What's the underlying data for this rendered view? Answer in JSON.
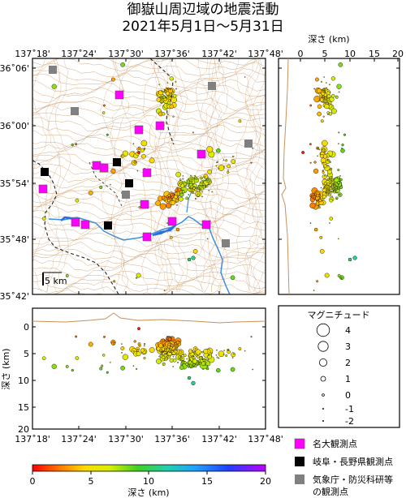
{
  "title_line1": "御嶽山周辺域の地震活動",
  "title_line2": "2021年5月1日～5月31日",
  "map": {
    "lon_ticks": [
      "137˚18'",
      "137˚24'",
      "137˚30'",
      "137˚36'",
      "137˚42'",
      "137˚48'"
    ],
    "lat_ticks": [
      "36˚06'",
      "36˚00'",
      "35˚54'",
      "35˚48'",
      "35˚42'"
    ],
    "scale_label": "5 km",
    "colors": {
      "contour": "#c8915a",
      "river": "#3a8fe0",
      "border": "#222222",
      "frame": "#000000"
    }
  },
  "depth_map": {
    "axis_title": "深さ (km)",
    "ticks": [
      "0",
      "5",
      "10",
      "15",
      "20"
    ]
  },
  "cross_section": {
    "ylabel": "深さ (km)",
    "y_ticks": [
      "0",
      "5",
      "10",
      "15",
      "20"
    ],
    "x_ticks": [
      "137˚18'",
      "137˚24'",
      "137˚30'",
      "137˚36'",
      "137˚42'",
      "137˚48'"
    ]
  },
  "magnitude_legend": {
    "title": "マグニチュード",
    "labels": [
      "4",
      "3",
      "2",
      "1",
      "0",
      "-1",
      "-2"
    ]
  },
  "colorbar": {
    "ticks": [
      "0",
      "5",
      "10",
      "15",
      "20"
    ],
    "label": "深さ (km)"
  },
  "station_legend": [
    {
      "label": "名大観測点",
      "color": "#ff00ff"
    },
    {
      "label": "岐阜・長野県観測点",
      "color": "#000000"
    },
    {
      "label": "気象庁・防災科研等",
      "color": "#808080"
    },
    {
      "label": "の観測点",
      "color": ""
    }
  ],
  "stations": {
    "nagoya_u": [
      [
        147,
        117
      ],
      [
        171,
        160
      ],
      [
        197,
        155
      ],
      [
        119,
        204
      ],
      [
        128,
        207
      ],
      [
        248,
        190
      ],
      [
        181,
        213
      ],
      [
        53,
        233
      ],
      [
        178,
        252
      ],
      [
        93,
        274
      ],
      [
        105,
        277
      ],
      [
        212,
        273
      ],
      [
        254,
        277
      ],
      [
        181,
        292
      ]
    ],
    "gifu_nagano": [
      [
        55,
        212
      ],
      [
        144,
        200
      ],
      [
        159,
        226
      ],
      [
        133,
        278
      ]
    ],
    "jma_nied": [
      [
        65,
        86
      ],
      [
        261,
        106
      ],
      [
        92,
        137
      ],
      [
        306,
        177
      ],
      [
        155,
        240
      ],
      [
        278,
        300
      ]
    ]
  }
}
